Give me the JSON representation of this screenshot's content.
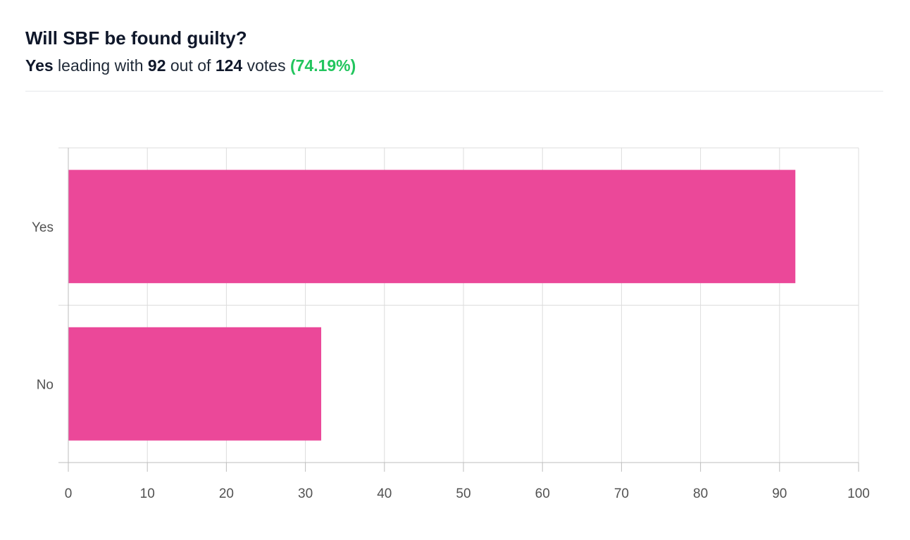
{
  "poll": {
    "title": "Will SBF be found guilty?",
    "leader": "Yes",
    "text_leading_with": "leading with",
    "leader_votes": "92",
    "text_out_of": "out of",
    "total_votes": "124",
    "text_votes": "votes",
    "percentage": "(74.19%)"
  },
  "colors": {
    "bar": "#eb4899",
    "percentage": "#22c55e",
    "grid": "#dcdcdc",
    "axis": "#bdbdbd"
  },
  "chart_data": {
    "type": "bar",
    "orientation": "horizontal",
    "categories": [
      "Yes",
      "No"
    ],
    "values": [
      92,
      32
    ],
    "xlim": [
      0,
      100
    ],
    "xticks": [
      0,
      10,
      20,
      30,
      40,
      50,
      60,
      70,
      80,
      90,
      100
    ],
    "grid": true,
    "legend": "none"
  }
}
